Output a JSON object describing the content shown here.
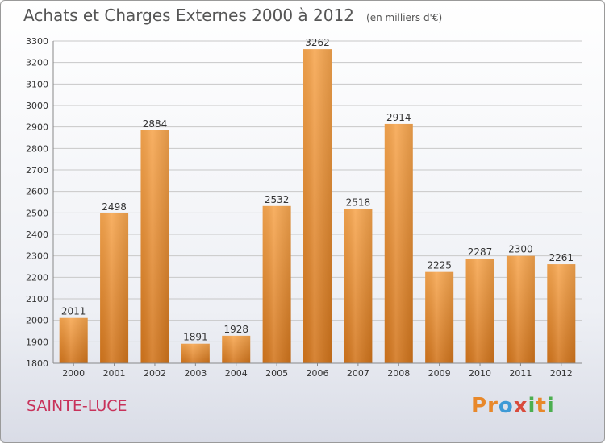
{
  "header": {
    "title": "Achats et Charges Externes 2000 à 2012",
    "unit": "(en milliers d'€)"
  },
  "footer": {
    "place": "SAINTE-LUCE",
    "logo_letters": [
      "P",
      "r",
      "o",
      "x",
      "i",
      "t",
      "i"
    ],
    "logo_colors": [
      "#e8882a",
      "#e8882a",
      "#3e9ad6",
      "#d94b3c",
      "#4caf50",
      "#e8882a",
      "#4caf50"
    ]
  },
  "colors": {
    "bar_top": "#f7a64f",
    "bar_bottom": "#d2751c",
    "grid": "#c8c8c8",
    "axis": "#888888"
  },
  "chart_data": {
    "type": "bar",
    "title": "Achats et Charges Externes 2000 à 2012",
    "subtitle": "(en milliers d'€)",
    "categories": [
      "2000",
      "2001",
      "2002",
      "2003",
      "2004",
      "2005",
      "2006",
      "2007",
      "2008",
      "2009",
      "2010",
      "2011",
      "2012"
    ],
    "values": [
      2011,
      2498,
      2884,
      1891,
      1928,
      2532,
      3262,
      2518,
      2914,
      2225,
      2287,
      2300,
      2261
    ],
    "ylim": [
      1800,
      3300
    ],
    "yticks": [
      1800,
      1900,
      2000,
      2100,
      2200,
      2300,
      2400,
      2500,
      2600,
      2700,
      2800,
      2900,
      3000,
      3100,
      3200,
      3300
    ],
    "grid": true,
    "legend": "none"
  }
}
